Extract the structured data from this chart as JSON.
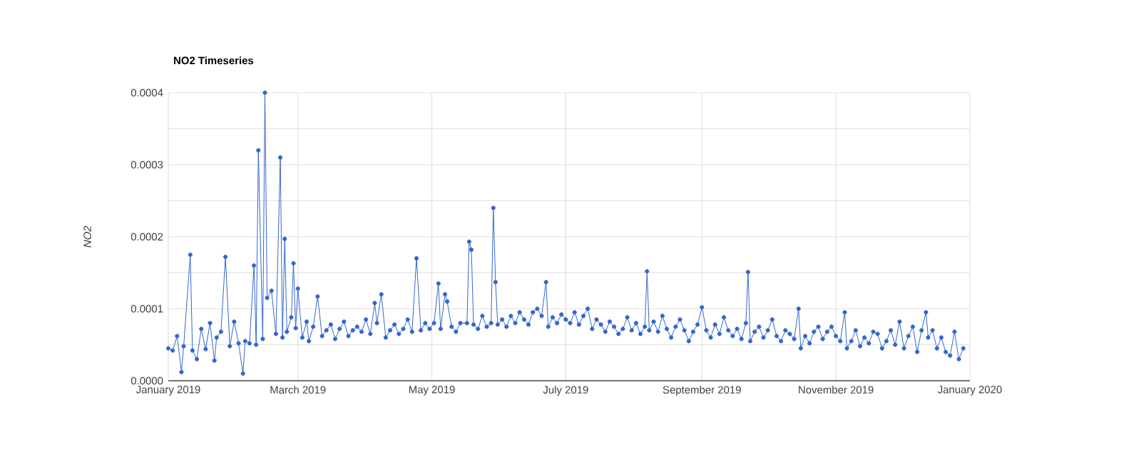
{
  "chart_data": {
    "type": "line",
    "title": "NO2 Timeseries",
    "ylabel": "NO2",
    "xlim": [
      "2019-01-01",
      "2020-01-01"
    ],
    "xticks": [
      {
        "value": "2019-01-01",
        "label": "January 2019"
      },
      {
        "value": "2019-03-01",
        "label": "March 2019"
      },
      {
        "value": "2019-05-01",
        "label": "May 2019"
      },
      {
        "value": "2019-07-01",
        "label": "July 2019"
      },
      {
        "value": "2019-09-01",
        "label": "September 2019"
      },
      {
        "value": "2019-11-01",
        "label": "November 2019"
      },
      {
        "value": "2020-01-01",
        "label": "January 2020"
      }
    ],
    "ylim": [
      0,
      0.0004
    ],
    "yticks": [
      {
        "value": 0,
        "label": "0.0000"
      },
      {
        "value": 5e-05,
        "label": null
      },
      {
        "value": 0.0001,
        "label": "0.0001"
      },
      {
        "value": 0.00015,
        "label": null
      },
      {
        "value": 0.0002,
        "label": "0.0002"
      },
      {
        "value": 0.00025,
        "label": null
      },
      {
        "value": 0.0003,
        "label": "0.0003"
      },
      {
        "value": 0.00035,
        "label": null
      },
      {
        "value": 0.0004,
        "label": "0.0004"
      }
    ],
    "grid": true,
    "marker": "circle",
    "line_style": "solid",
    "x": [
      "2019-01-01",
      "2019-01-03",
      "2019-01-05",
      "2019-01-07",
      "2019-01-08",
      "2019-01-11",
      "2019-01-12",
      "2019-01-14",
      "2019-01-16",
      "2019-01-18",
      "2019-01-20",
      "2019-01-22",
      "2019-01-23",
      "2019-01-25",
      "2019-01-27",
      "2019-01-29",
      "2019-01-31",
      "2019-02-02",
      "2019-02-04",
      "2019-02-05",
      "2019-02-07",
      "2019-02-09",
      "2019-02-10",
      "2019-02-11",
      "2019-02-13",
      "2019-02-14",
      "2019-02-15",
      "2019-02-17",
      "2019-02-19",
      "2019-02-21",
      "2019-02-22",
      "2019-02-23",
      "2019-02-24",
      "2019-02-26",
      "2019-02-27",
      "2019-02-28",
      "2019-03-01",
      "2019-03-03",
      "2019-03-05",
      "2019-03-06",
      "2019-03-08",
      "2019-03-10",
      "2019-03-12",
      "2019-03-14",
      "2019-03-16",
      "2019-03-18",
      "2019-03-20",
      "2019-03-22",
      "2019-03-24",
      "2019-03-26",
      "2019-03-28",
      "2019-03-30",
      "2019-04-01",
      "2019-04-03",
      "2019-04-05",
      "2019-04-06",
      "2019-04-08",
      "2019-04-10",
      "2019-04-12",
      "2019-04-14",
      "2019-04-16",
      "2019-04-18",
      "2019-04-20",
      "2019-04-22",
      "2019-04-24",
      "2019-04-26",
      "2019-04-28",
      "2019-04-30",
      "2019-05-02",
      "2019-05-04",
      "2019-05-05",
      "2019-05-07",
      "2019-05-08",
      "2019-05-10",
      "2019-05-12",
      "2019-05-14",
      "2019-05-17",
      "2019-05-18",
      "2019-05-19",
      "2019-05-20",
      "2019-05-22",
      "2019-05-24",
      "2019-05-26",
      "2019-05-28",
      "2019-05-29",
      "2019-05-30",
      "2019-05-31",
      "2019-06-02",
      "2019-06-04",
      "2019-06-06",
      "2019-06-08",
      "2019-06-10",
      "2019-06-12",
      "2019-06-14",
      "2019-06-16",
      "2019-06-18",
      "2019-06-20",
      "2019-06-22",
      "2019-06-23",
      "2019-06-25",
      "2019-06-27",
      "2019-06-29",
      "2019-07-01",
      "2019-07-03",
      "2019-07-05",
      "2019-07-07",
      "2019-07-09",
      "2019-07-11",
      "2019-07-13",
      "2019-07-15",
      "2019-07-17",
      "2019-07-19",
      "2019-07-21",
      "2019-07-23",
      "2019-07-25",
      "2019-07-27",
      "2019-07-29",
      "2019-07-31",
      "2019-08-02",
      "2019-08-04",
      "2019-08-06",
      "2019-08-07",
      "2019-08-08",
      "2019-08-10",
      "2019-08-12",
      "2019-08-14",
      "2019-08-16",
      "2019-08-18",
      "2019-08-20",
      "2019-08-22",
      "2019-08-24",
      "2019-08-26",
      "2019-08-28",
      "2019-08-30",
      "2019-09-01",
      "2019-09-03",
      "2019-09-05",
      "2019-09-07",
      "2019-09-09",
      "2019-09-11",
      "2019-09-13",
      "2019-09-15",
      "2019-09-17",
      "2019-09-19",
      "2019-09-21",
      "2019-09-22",
      "2019-09-23",
      "2019-09-25",
      "2019-09-27",
      "2019-09-29",
      "2019-10-01",
      "2019-10-03",
      "2019-10-05",
      "2019-10-07",
      "2019-10-09",
      "2019-10-11",
      "2019-10-13",
      "2019-10-15",
      "2019-10-16",
      "2019-10-18",
      "2019-10-20",
      "2019-10-22",
      "2019-10-24",
      "2019-10-26",
      "2019-10-28",
      "2019-10-30",
      "2019-11-01",
      "2019-11-03",
      "2019-11-05",
      "2019-11-06",
      "2019-11-08",
      "2019-11-10",
      "2019-11-12",
      "2019-11-14",
      "2019-11-16",
      "2019-11-18",
      "2019-11-20",
      "2019-11-22",
      "2019-11-24",
      "2019-11-26",
      "2019-11-28",
      "2019-11-30",
      "2019-12-02",
      "2019-12-04",
      "2019-12-06",
      "2019-12-08",
      "2019-12-10",
      "2019-12-12",
      "2019-12-13",
      "2019-12-15",
      "2019-12-17",
      "2019-12-19",
      "2019-12-21",
      "2019-12-23",
      "2019-12-25",
      "2019-12-27",
      "2019-12-29"
    ],
    "series": [
      {
        "color": "#3366cc",
        "values": [
          4.5e-05,
          4.2e-05,
          6.2e-05,
          1.2e-05,
          4.8e-05,
          0.000175,
          4.2e-05,
          3e-05,
          7.2e-05,
          4.4e-05,
          8e-05,
          2.8e-05,
          6e-05,
          6.8e-05,
          0.000172,
          4.8e-05,
          8.2e-05,
          5.2e-05,
          1e-05,
          5.5e-05,
          5.2e-05,
          0.00016,
          5e-05,
          0.00032,
          5.8e-05,
          0.0004,
          0.000115,
          0.000125,
          6.5e-05,
          0.00031,
          6e-05,
          0.000197,
          6.8e-05,
          8.8e-05,
          0.000163,
          7.3e-05,
          0.000128,
          6e-05,
          8.2e-05,
          5.5e-05,
          7.5e-05,
          0.000117,
          6.2e-05,
          7e-05,
          7.8e-05,
          5.8e-05,
          7.2e-05,
          8.2e-05,
          6.2e-05,
          7e-05,
          7.5e-05,
          6.8e-05,
          8.5e-05,
          6.5e-05,
          0.000108,
          8e-05,
          0.00012,
          6e-05,
          7e-05,
          7.8e-05,
          6.5e-05,
          7.2e-05,
          8.5e-05,
          6.8e-05,
          0.00017,
          7e-05,
          8e-05,
          7.2e-05,
          8e-05,
          0.000135,
          7.2e-05,
          0.00012,
          0.00011,
          7.5e-05,
          6.8e-05,
          8e-05,
          8e-05,
          0.000193,
          0.000182,
          7.8e-05,
          7.2e-05,
          9e-05,
          7.5e-05,
          8e-05,
          0.00024,
          0.000137,
          7.8e-05,
          8.5e-05,
          7.5e-05,
          9e-05,
          8e-05,
          9.5e-05,
          8.5e-05,
          7.8e-05,
          9.5e-05,
          0.0001,
          9e-05,
          0.000137,
          7.5e-05,
          8.8e-05,
          8e-05,
          9.2e-05,
          8.5e-05,
          8e-05,
          9.5e-05,
          7.8e-05,
          9e-05,
          0.0001,
          7.2e-05,
          8.5e-05,
          7.8e-05,
          6.8e-05,
          8.2e-05,
          7.5e-05,
          6.5e-05,
          7.2e-05,
          8.8e-05,
          7e-05,
          8e-05,
          6.5e-05,
          7.5e-05,
          0.000152,
          7e-05,
          8.2e-05,
          6.8e-05,
          9e-05,
          7.2e-05,
          6e-05,
          7.5e-05,
          8.5e-05,
          7e-05,
          5.5e-05,
          6.8e-05,
          7.8e-05,
          0.000102,
          7e-05,
          6e-05,
          7.8e-05,
          6.5e-05,
          8.8e-05,
          7e-05,
          6.2e-05,
          7.2e-05,
          5.8e-05,
          8e-05,
          0.000151,
          5.5e-05,
          6.8e-05,
          7.5e-05,
          6e-05,
          7e-05,
          8.5e-05,
          6.2e-05,
          5.5e-05,
          7e-05,
          6.5e-05,
          5.8e-05,
          0.0001,
          4.5e-05,
          6.2e-05,
          5.2e-05,
          6.8e-05,
          7.5e-05,
          5.8e-05,
          6.8e-05,
          7.5e-05,
          6.2e-05,
          5.5e-05,
          9.5e-05,
          4.5e-05,
          5.5e-05,
          7e-05,
          4.8e-05,
          6e-05,
          5.2e-05,
          6.8e-05,
          6.5e-05,
          4.5e-05,
          5.5e-05,
          7e-05,
          5e-05,
          8.2e-05,
          4.5e-05,
          6.2e-05,
          7.5e-05,
          4e-05,
          7e-05,
          9.5e-05,
          6e-05,
          7e-05,
          4.5e-05,
          6e-05,
          4e-05,
          3.5e-05,
          6.8e-05,
          3e-05,
          4.5e-05
        ]
      }
    ]
  }
}
